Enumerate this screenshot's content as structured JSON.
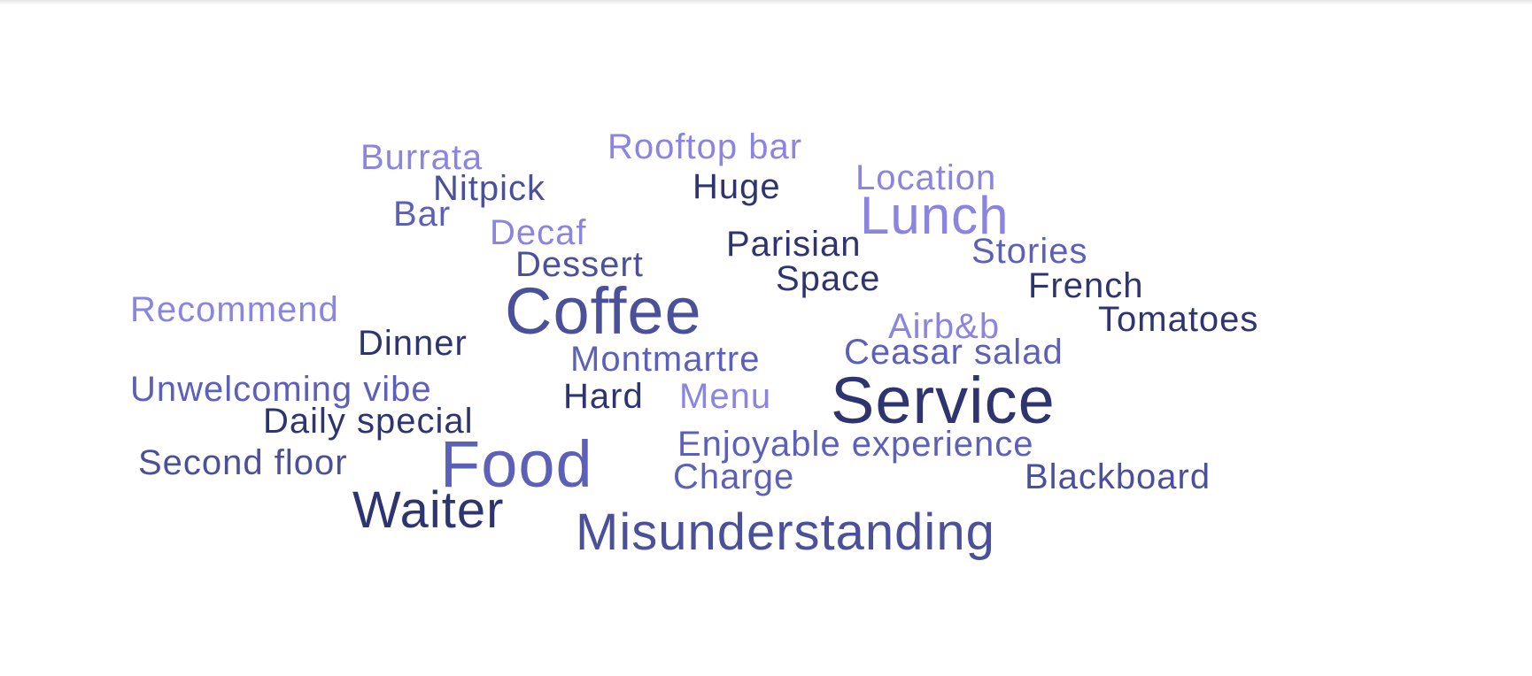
{
  "word_cloud": {
    "words": [
      {
        "text": "Burrata",
        "color": "#8a85e0"
      },
      {
        "text": "Rooftop bar",
        "color": "#8a85e0"
      },
      {
        "text": "Nitpick",
        "color": "#4a5099"
      },
      {
        "text": "Huge",
        "color": "#2e3470"
      },
      {
        "text": "Location",
        "color": "#8a85e0"
      },
      {
        "text": "Bar",
        "color": "#5c60b8"
      },
      {
        "text": "Lunch",
        "color": "#8a85e0"
      },
      {
        "text": "Decaf",
        "color": "#8a85e0"
      },
      {
        "text": "Parisian",
        "color": "#2e3470"
      },
      {
        "text": "Stories",
        "color": "#5c60b8"
      },
      {
        "text": "Dessert",
        "color": "#4a5099"
      },
      {
        "text": "Space",
        "color": "#2e3470"
      },
      {
        "text": "French",
        "color": "#2e3470"
      },
      {
        "text": "Recommend",
        "color": "#8a85e0"
      },
      {
        "text": "Coffee",
        "color": "#4a5099"
      },
      {
        "text": "Tomatoes",
        "color": "#2e3470"
      },
      {
        "text": "Airb&b",
        "color": "#8a85e0"
      },
      {
        "text": "Dinner",
        "color": "#2e3470"
      },
      {
        "text": "Ceasar salad",
        "color": "#5c60b8"
      },
      {
        "text": "Montmartre",
        "color": "#5c60b8"
      },
      {
        "text": "Unwelcoming vibe",
        "color": "#5c60b8"
      },
      {
        "text": "Hard",
        "color": "#2e3470"
      },
      {
        "text": "Menu",
        "color": "#8a85e0"
      },
      {
        "text": "Service",
        "color": "#2e3470"
      },
      {
        "text": "Daily special",
        "color": "#2e3470"
      },
      {
        "text": "Enjoyable experience",
        "color": "#5c60b8"
      },
      {
        "text": "Second floor",
        "color": "#4a5099"
      },
      {
        "text": "Food",
        "color": "#5c60b8"
      },
      {
        "text": "Charge",
        "color": "#5c60b8"
      },
      {
        "text": "Blackboard",
        "color": "#4a5099"
      },
      {
        "text": "Waiter",
        "color": "#2e3470"
      },
      {
        "text": "Misunderstanding",
        "color": "#4a5099"
      }
    ]
  }
}
